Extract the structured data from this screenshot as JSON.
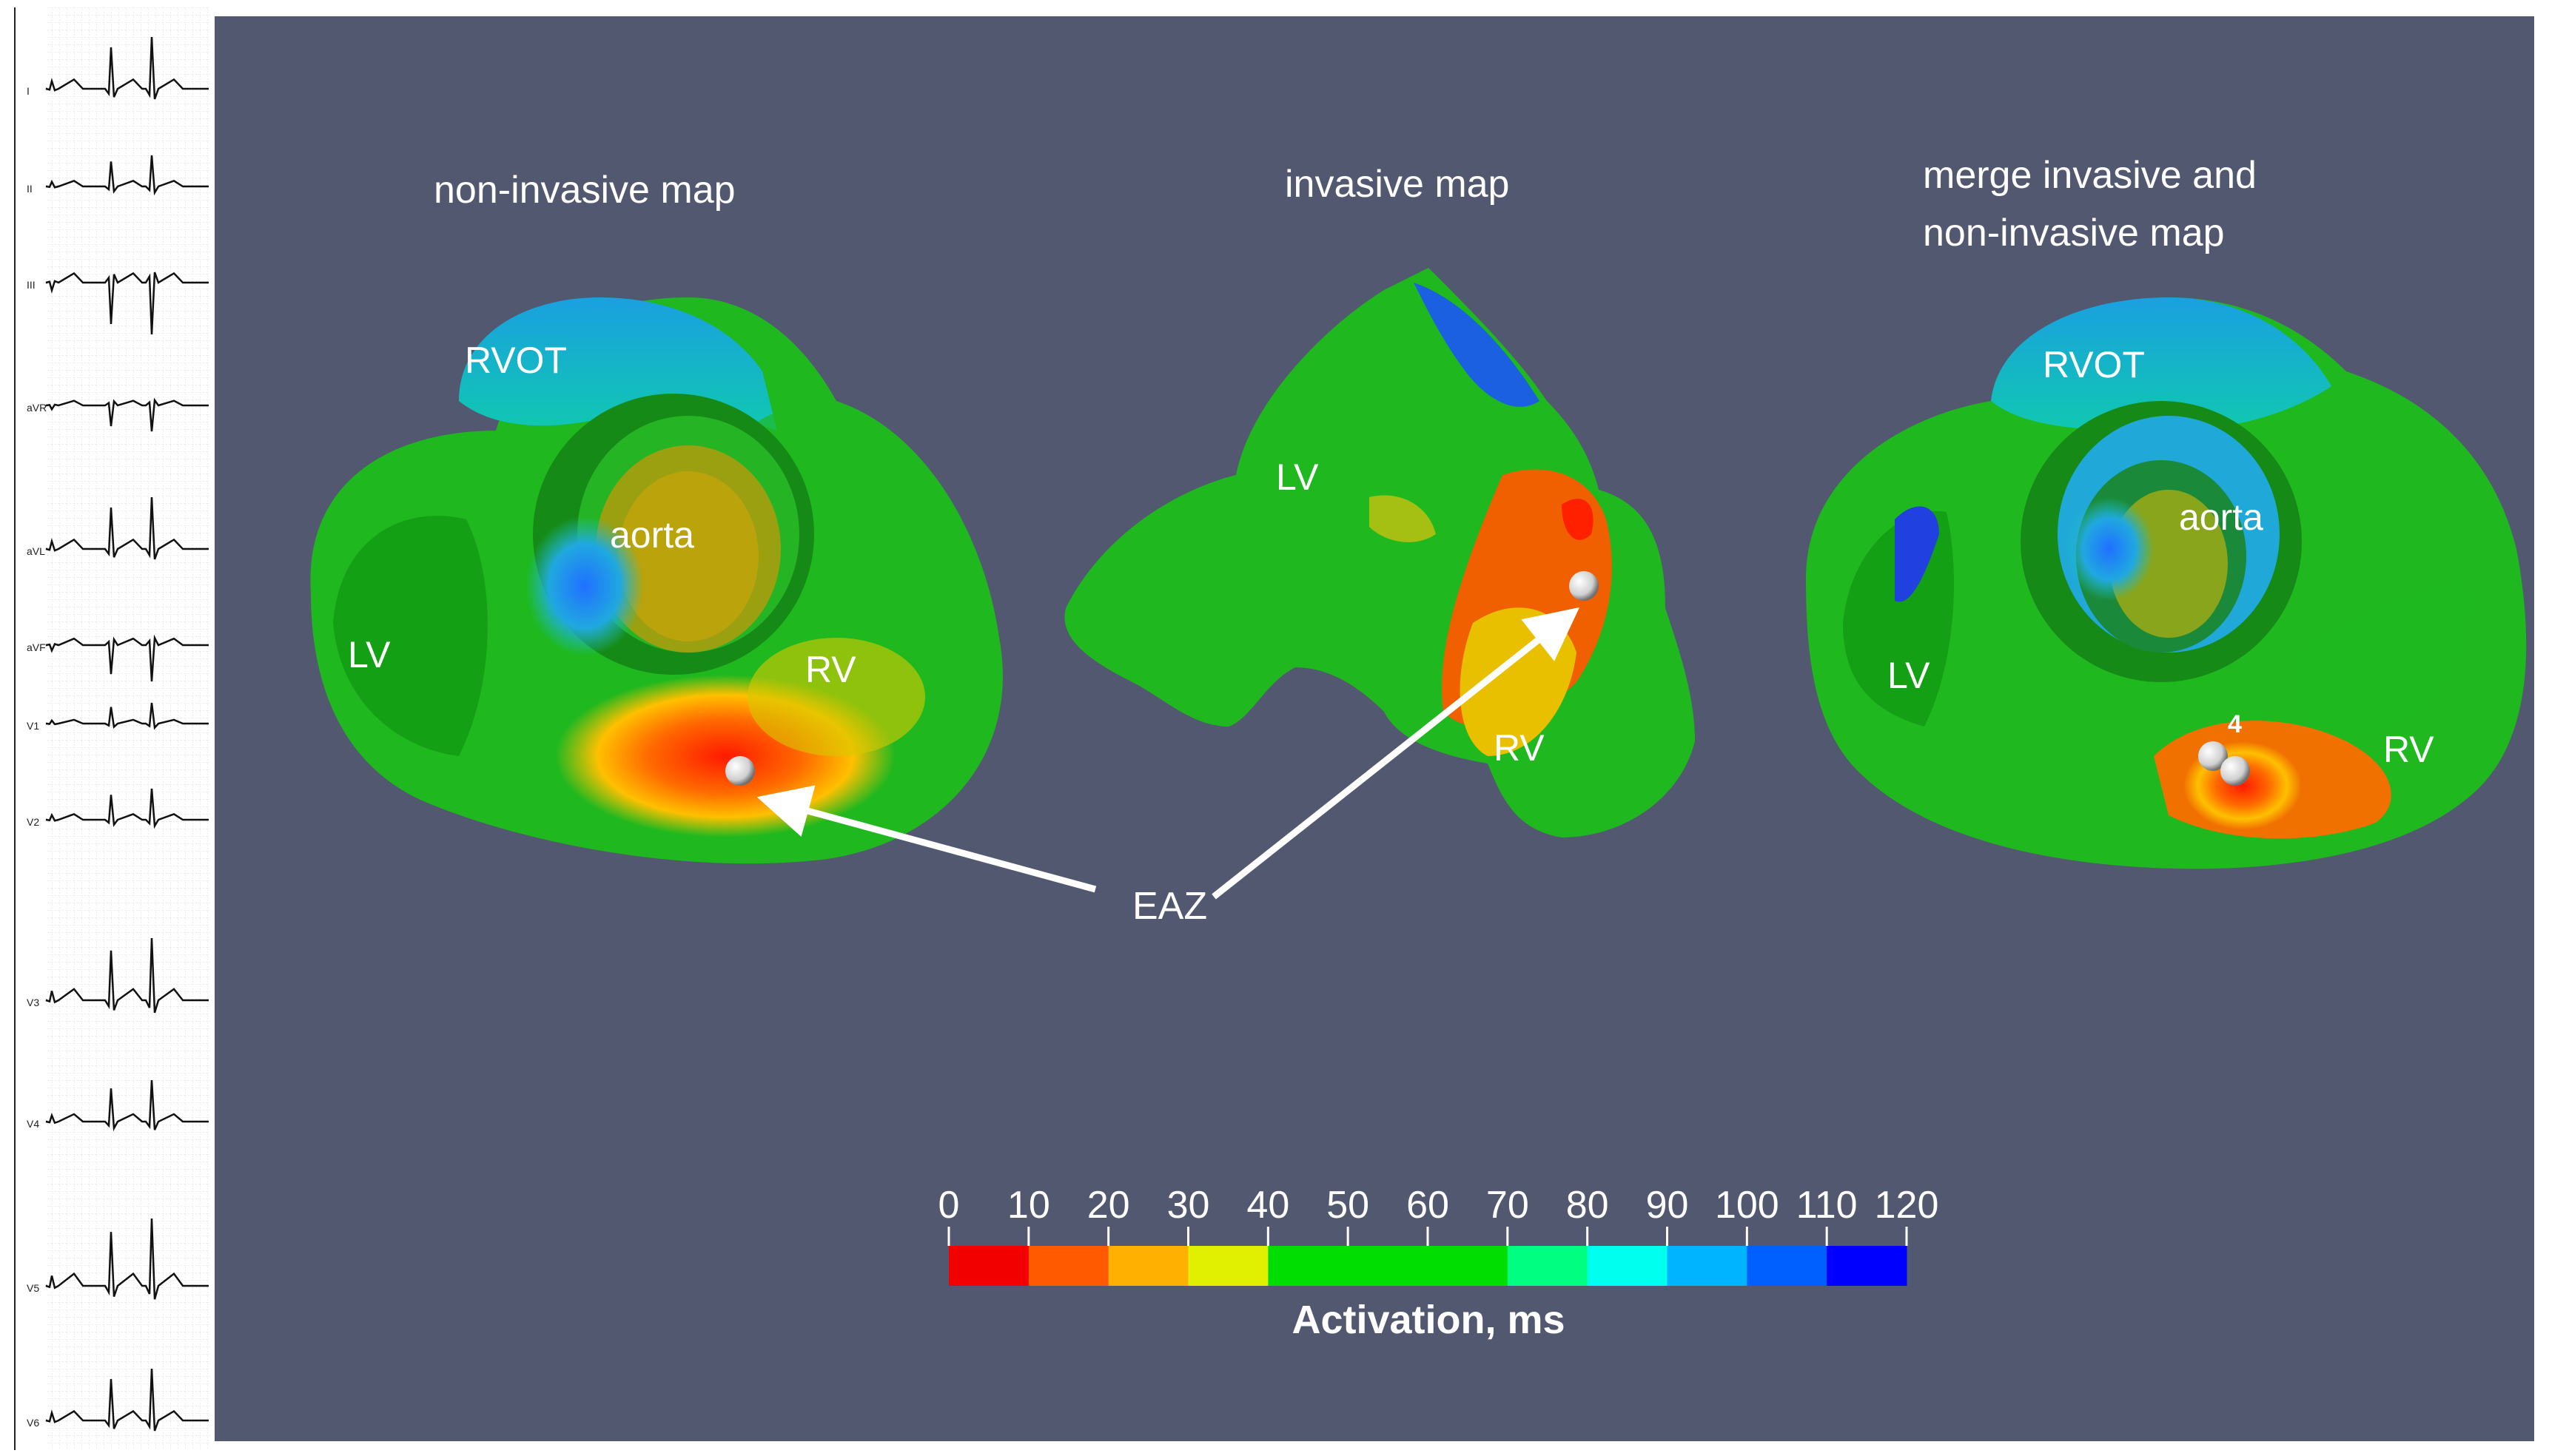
{
  "ecg": {
    "leads": [
      "I",
      "II",
      "III",
      "aVR",
      "aVL",
      "aVF",
      "V1",
      "V2",
      "V3",
      "V4",
      "V5",
      "V6"
    ]
  },
  "panels": {
    "noninvasive": {
      "title": "non-invasive map",
      "labels": {
        "rvot": "RVOT",
        "aorta": "aorta",
        "lv": "LV",
        "rv": "RV"
      }
    },
    "invasive": {
      "title": "invasive  map",
      "labels": {
        "lv": "LV",
        "rv": "RV"
      }
    },
    "merge": {
      "title_line1": "merge invasive and",
      "title_line2": "non-invasive map",
      "labels": {
        "rvot": "RVOT",
        "aorta": "aorta",
        "lv": "LV",
        "rv": "RV",
        "marker": "4"
      }
    }
  },
  "annotation": {
    "eaz": "EAZ"
  },
  "colorbar": {
    "title": "Activation, ms",
    "ticks": [
      "0",
      "10",
      "20",
      "30",
      "40",
      "50",
      "60",
      "70",
      "80",
      "90",
      "100",
      "110",
      "120"
    ],
    "colors": [
      "#f20000",
      "#ff5a00",
      "#ffb000",
      "#e0f000",
      "#00dd00",
      "#00dd00",
      "#00dd00",
      "#00ff80",
      "#00ffee",
      "#00b4ff",
      "#0060ff",
      "#0000ff"
    ]
  },
  "colors": {
    "background": "#525870",
    "label": "#ffffff"
  }
}
